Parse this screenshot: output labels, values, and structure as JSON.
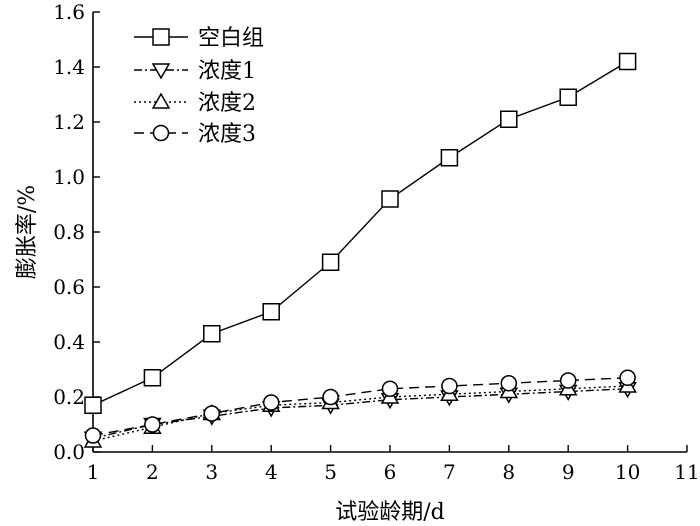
{
  "chart_data": {
    "type": "line",
    "xlabel": "试验龄期/d",
    "ylabel": "膨胀率/%",
    "xlim": [
      1,
      11
    ],
    "ylim": [
      0.0,
      1.6
    ],
    "xticks": [
      "1",
      "2",
      "3",
      "4",
      "5",
      "6",
      "7",
      "8",
      "9",
      "10",
      "11"
    ],
    "yticks": [
      "0.0",
      "0.2",
      "0.4",
      "0.6",
      "0.8",
      "1.0",
      "1.2",
      "1.4",
      "1.6"
    ],
    "grid": false,
    "legend_position": "top-left",
    "x": [
      1,
      2,
      3,
      4,
      5,
      6,
      7,
      8,
      9,
      10
    ],
    "series": [
      {
        "name": "空白组",
        "marker": "square",
        "line": "solid",
        "values": [
          0.17,
          0.27,
          0.43,
          0.51,
          0.69,
          0.92,
          1.07,
          1.21,
          1.29,
          1.42
        ]
      },
      {
        "name": "浓度1",
        "marker": "triangle-down",
        "line": "dashdot",
        "values": [
          0.05,
          0.1,
          0.13,
          0.16,
          0.17,
          0.19,
          0.2,
          0.21,
          0.22,
          0.23
        ]
      },
      {
        "name": "浓度2",
        "marker": "triangle-up",
        "line": "dotted",
        "values": [
          0.04,
          0.09,
          0.14,
          0.17,
          0.18,
          0.2,
          0.21,
          0.22,
          0.23,
          0.24
        ]
      },
      {
        "name": "浓度3",
        "marker": "circle",
        "line": "dashed",
        "values": [
          0.06,
          0.1,
          0.14,
          0.18,
          0.2,
          0.23,
          0.24,
          0.25,
          0.26,
          0.27
        ]
      }
    ]
  }
}
